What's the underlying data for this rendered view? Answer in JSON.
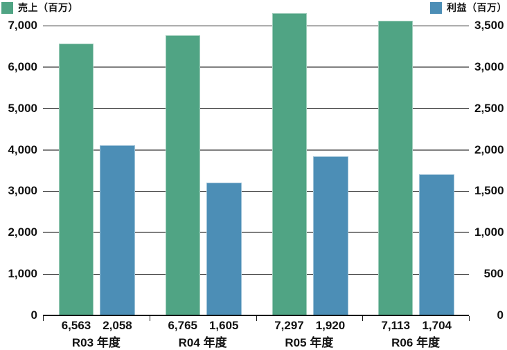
{
  "chart_data": {
    "type": "bar",
    "title": "",
    "categories": [
      "R03 年度",
      "R04 年度",
      "R05 年度",
      "R06 年度"
    ],
    "series": [
      {
        "name": "売上（百万）",
        "axis": "left",
        "color": "#50A484",
        "values": [
          6563,
          6765,
          7297,
          7113
        ],
        "value_labels": [
          "6,563",
          "6,765",
          "7,297",
          "7,113"
        ]
      },
      {
        "name": "利益（百万）",
        "axis": "right",
        "color": "#4C8EB6",
        "values": [
          2058,
          1605,
          1920,
          1704
        ],
        "value_labels": [
          "2,058",
          "1,605",
          "1,920",
          "1,704"
        ]
      }
    ],
    "left_axis": {
      "min": 0,
      "max": 7000,
      "step": 1000,
      "tick_labels": [
        "0",
        "1,000",
        "2,000",
        "3,000",
        "4,000",
        "5,000",
        "6,000",
        "7,000"
      ]
    },
    "right_axis": {
      "min": 0,
      "max": 3500,
      "step": 500,
      "tick_labels": [
        "0",
        "500",
        "1,000",
        "1,500",
        "2,000",
        "2,500",
        "3,000",
        "3,500"
      ]
    },
    "grid": true,
    "legend_position": "top",
    "colors": {
      "grid_major": "#1a1a1a",
      "grid_minor": "#808080",
      "axis": "#000000",
      "text": "#111111",
      "background": "#ffffff"
    }
  }
}
